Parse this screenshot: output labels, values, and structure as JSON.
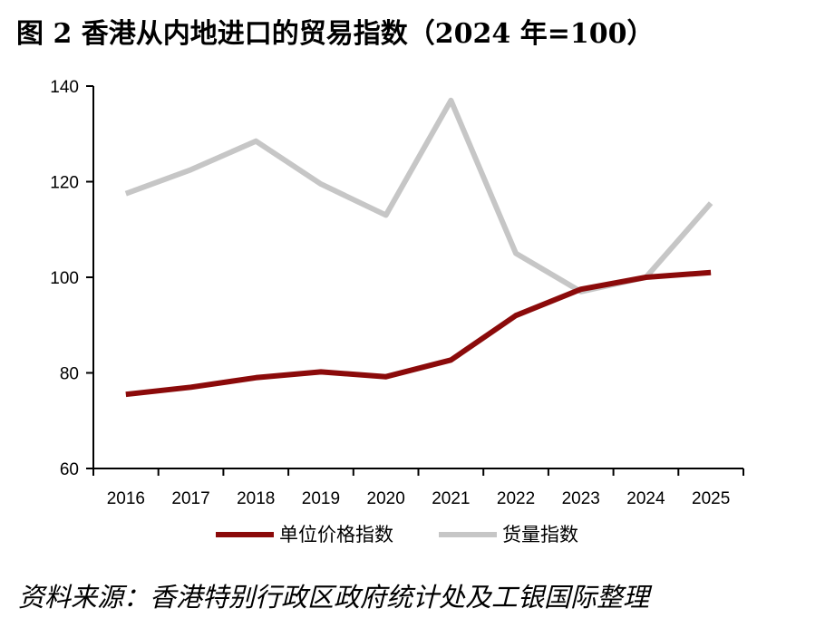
{
  "title": "图 2 香港从内地进口的贸易指数（2024 年=100）",
  "source": "资料来源：香港特别行政区政府统计处及工银国际整理",
  "colors": {
    "price_series": "#8b0a0a",
    "volume_series": "#c6c6c6",
    "axis": "#000000"
  },
  "chart_data": {
    "type": "line",
    "title": "图 2 香港从内地进口的贸易指数（2024 年=100）",
    "x": [
      "2016",
      "2017",
      "2018",
      "2019",
      "2020",
      "2021",
      "2022",
      "2023",
      "2024",
      "2025"
    ],
    "ylim": [
      60,
      140
    ],
    "yticks": [
      "60",
      "80",
      "100",
      "120",
      "140"
    ],
    "grid": false,
    "legend_position": "bottom",
    "series": [
      {
        "name": "单位价格指数",
        "values": [
          75.5,
          77.0,
          79.0,
          80.2,
          79.2,
          82.7,
          92.0,
          97.5,
          100.0,
          101.0
        ]
      },
      {
        "name": "货量指数",
        "values": [
          117.5,
          122.5,
          128.5,
          119.5,
          113.0,
          137.0,
          105.0,
          97.0,
          100.0,
          115.5
        ]
      }
    ]
  }
}
